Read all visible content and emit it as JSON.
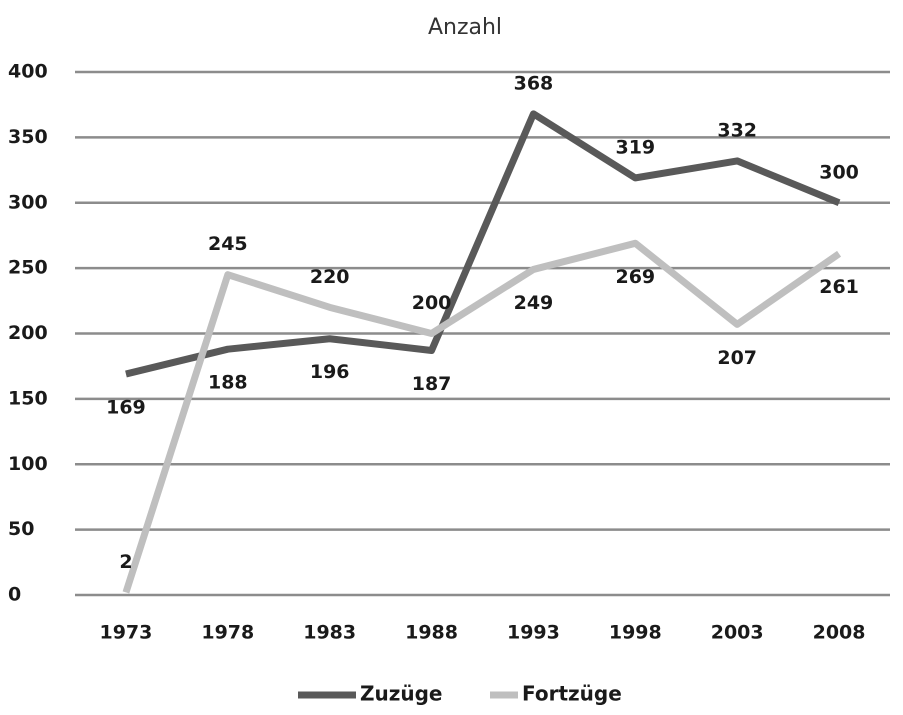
{
  "chart_data": {
    "type": "line",
    "title": "Anzahl",
    "categories": [
      "1973",
      "1978",
      "1983",
      "1988",
      "1993",
      "1998",
      "2003",
      "2008"
    ],
    "series": [
      {
        "name": "Zuzüge",
        "color": "#595959",
        "values": [
          169,
          188,
          196,
          187,
          368,
          319,
          332,
          300
        ]
      },
      {
        "name": "Fortzüge",
        "color": "#bfbfbf",
        "values": [
          2,
          245,
          220,
          200,
          249,
          269,
          207,
          261
        ]
      }
    ],
    "ylim": [
      0,
      400
    ],
    "yticks": [
      0,
      50,
      100,
      150,
      200,
      250,
      300,
      350,
      400
    ],
    "grid": true,
    "legend": "bottom"
  }
}
